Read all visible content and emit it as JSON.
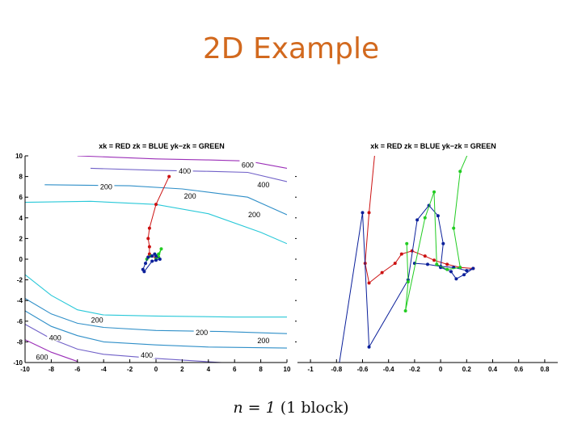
{
  "slide": {
    "title": "2D Example",
    "caption_math": "n = 1",
    "caption_text": "(1 block)"
  },
  "colors": {
    "title": "#d2691e",
    "red": "#cc1111",
    "blue": "#0a1f9a",
    "green": "#22cc22"
  },
  "chart_data": [
    {
      "type": "line",
      "legend": [
        "xk = RED",
        "zk = BLUE",
        "yk−zk = GREEN"
      ],
      "xlim": [
        -10,
        10
      ],
      "ylim": [
        -10,
        10
      ],
      "xticks": [
        -10,
        -8,
        -6,
        -4,
        -2,
        0,
        2,
        4,
        6,
        8,
        10
      ],
      "yticks": [
        -10,
        -8,
        -6,
        -4,
        -2,
        0,
        2,
        4,
        6,
        8,
        10
      ],
      "contours": [
        {
          "level": "600",
          "color": "#9b2fb8",
          "points": [
            [
              -6,
              10
            ],
            [
              0,
              9.7
            ],
            [
              4,
              9.6
            ],
            [
              7,
              9.5
            ],
            [
              10,
              8.8
            ]
          ]
        },
        {
          "level": "400",
          "color": "#7060c8",
          "points": [
            [
              -5,
              8.8
            ],
            [
              0,
              8.6
            ],
            [
              4,
              8.5
            ],
            [
              7,
              8.4
            ],
            [
              10,
              7.5
            ]
          ]
        },
        {
          "level": "200",
          "color": "#2f8fc8",
          "points": [
            [
              -8.5,
              7.2
            ],
            [
              -2,
              7.1
            ],
            [
              2,
              6.8
            ],
            [
              7,
              6
            ],
            [
              10,
              4.3
            ]
          ]
        },
        {
          "level": "",
          "color": "#28c8d8",
          "points": [
            [
              -10,
              5.5
            ],
            [
              -5,
              5.6
            ],
            [
              0,
              5.3
            ],
            [
              4,
              4.4
            ],
            [
              8,
              2.6
            ],
            [
              10,
              1.5
            ]
          ]
        },
        {
          "level": "",
          "color": "#28c8d8",
          "points": [
            [
              -10,
              -1.5
            ],
            [
              -8,
              -3.5
            ],
            [
              -6,
              -4.9
            ],
            [
              -4,
              -5.4
            ],
            [
              0,
              -5.5
            ],
            [
              6,
              -5.6
            ],
            [
              10,
              -5.6
            ]
          ]
        },
        {
          "level": "",
          "color": "#2f8fc8",
          "points": [
            [
              -10,
              -3.8
            ],
            [
              -8,
              -5.3
            ],
            [
              -6,
              -6.2
            ],
            [
              -4,
              -6.6
            ],
            [
              0,
              -6.9
            ],
            [
              5,
              -7
            ],
            [
              10,
              -7.2
            ]
          ]
        },
        {
          "level": "200",
          "color": "#2f8fc8",
          "points": [
            [
              -10,
              -5
            ],
            [
              -8,
              -6.5
            ],
            [
              -6,
              -7.4
            ],
            [
              -4,
              -8
            ],
            [
              0,
              -8.3
            ],
            [
              4,
              -8.5
            ],
            [
              10,
              -8.6
            ]
          ]
        },
        {
          "level": "400",
          "color": "#7060c8",
          "points": [
            [
              -10,
              -6.3
            ],
            [
              -8,
              -7.7
            ],
            [
              -6,
              -8.7
            ],
            [
              -4,
              -9.2
            ],
            [
              0,
              -9.6
            ],
            [
              5,
              -10
            ]
          ]
        },
        {
          "level": "600",
          "color": "#9b2fb8",
          "points": [
            [
              -10,
              -7.8
            ],
            [
              -8,
              -9
            ],
            [
              -6,
              -9.9
            ]
          ]
        }
      ],
      "contour_labels": [
        {
          "text": "600",
          "x": 7,
          "y": 9.1
        },
        {
          "text": "400",
          "x": 2.2,
          "y": 8.5
        },
        {
          "text": "400",
          "x": 8.2,
          "y": 7.2
        },
        {
          "text": "200",
          "x": -3.8,
          "y": 7
        },
        {
          "text": "200",
          "x": 2.6,
          "y": 6.1
        },
        {
          "text": "200",
          "x": 7.5,
          "y": 4.3
        },
        {
          "text": "200",
          "x": -4.5,
          "y": -5.9
        },
        {
          "text": "200",
          "x": 3.5,
          "y": -7.1
        },
        {
          "text": "200",
          "x": 8.2,
          "y": -7.9
        },
        {
          "text": "400",
          "x": -7.7,
          "y": -7.6
        },
        {
          "text": "400",
          "x": -0.7,
          "y": -9.3
        },
        {
          "text": "600",
          "x": -8.7,
          "y": -9.5
        }
      ],
      "series": [
        {
          "name": "RED",
          "color": "#cc1111",
          "points": [
            [
              1,
              8
            ],
            [
              0,
              5.3
            ],
            [
              -0.5,
              3
            ],
            [
              -0.6,
              2
            ],
            [
              -0.5,
              1.2
            ],
            [
              -0.5,
              0.5
            ],
            [
              -0.6,
              0.2
            ],
            [
              -0.3,
              0.3
            ],
            [
              0,
              0.1
            ]
          ]
        },
        {
          "name": "GREEN",
          "color": "#22cc22",
          "points": [
            [
              -0.7,
              0
            ],
            [
              -0.4,
              0.3
            ],
            [
              0.2,
              0.5
            ],
            [
              0.4,
              1
            ],
            [
              0.2,
              0.2
            ],
            [
              0,
              0
            ]
          ]
        },
        {
          "name": "BLUE",
          "color": "#0a1f9a",
          "points": [
            [
              -1,
              -1
            ],
            [
              -0.8,
              -0.4
            ],
            [
              -0.6,
              0.2
            ],
            [
              -0.3,
              0.3
            ],
            [
              -0.1,
              0.5
            ],
            [
              0,
              0.3
            ],
            [
              0.3,
              0
            ],
            [
              0,
              -0.1
            ],
            [
              -0.3,
              -0.2
            ],
            [
              -0.9,
              -1.2
            ]
          ]
        }
      ]
    },
    {
      "type": "line",
      "legend": [
        "xk = RED",
        "zk = BLUE",
        "yk−zk = GREEN"
      ],
      "xlim": [
        -1.1,
        0.9
      ],
      "xticks": [
        -1,
        -0.8,
        -0.6,
        -0.4,
        -0.2,
        0,
        0.2,
        0.4,
        0.6,
        0.8
      ],
      "ylim": [
        -10,
        10
      ],
      "series": [
        {
          "name": "RED",
          "color": "#cc1111",
          "points": [
            [
              -0.5,
              11
            ],
            [
              -0.55,
              4.5
            ],
            [
              -0.58,
              -0.4
            ],
            [
              -0.55,
              -2.3
            ],
            [
              -0.45,
              -1.3
            ],
            [
              -0.35,
              -0.4
            ],
            [
              -0.3,
              0.5
            ],
            [
              -0.22,
              0.8
            ],
            [
              -0.12,
              0.3
            ],
            [
              -0.05,
              -0.1
            ],
            [
              0.05,
              -0.5
            ],
            [
              0.15,
              -0.8
            ],
            [
              0.25,
              -0.9
            ]
          ]
        },
        {
          "name": "BLUE",
          "color": "#0a1f9a",
          "points": [
            [
              -0.79,
              -11
            ],
            [
              -0.6,
              4.5
            ],
            [
              -0.55,
              -8.5
            ],
            [
              -0.25,
              -2
            ],
            [
              -0.18,
              3.8
            ],
            [
              -0.09,
              5.2
            ],
            [
              -0.02,
              4.2
            ],
            [
              0.02,
              1.5
            ],
            [
              0,
              -0.8
            ],
            [
              0.08,
              -1.2
            ],
            [
              0.12,
              -1.9
            ],
            [
              0.18,
              -1.5
            ],
            [
              0.25,
              -0.9
            ],
            [
              0.2,
              -1.1
            ],
            [
              0.1,
              -0.8
            ],
            [
              0,
              -0.7
            ],
            [
              -0.1,
              -0.5
            ],
            [
              -0.2,
              -0.4
            ]
          ]
        },
        {
          "name": "GREEN",
          "color": "#22cc22",
          "points": [
            [
              -0.26,
              1.5
            ],
            [
              -0.25,
              -2.2
            ],
            [
              -0.27,
              -5
            ],
            [
              -0.12,
              4
            ],
            [
              -0.05,
              6.5
            ],
            [
              -0.03,
              -0.5
            ],
            [
              0.05,
              -1
            ],
            [
              0.15,
              -0.8
            ],
            [
              0.1,
              3
            ],
            [
              0.15,
              8.5
            ],
            [
              0.22,
              10.5
            ]
          ]
        }
      ]
    }
  ]
}
